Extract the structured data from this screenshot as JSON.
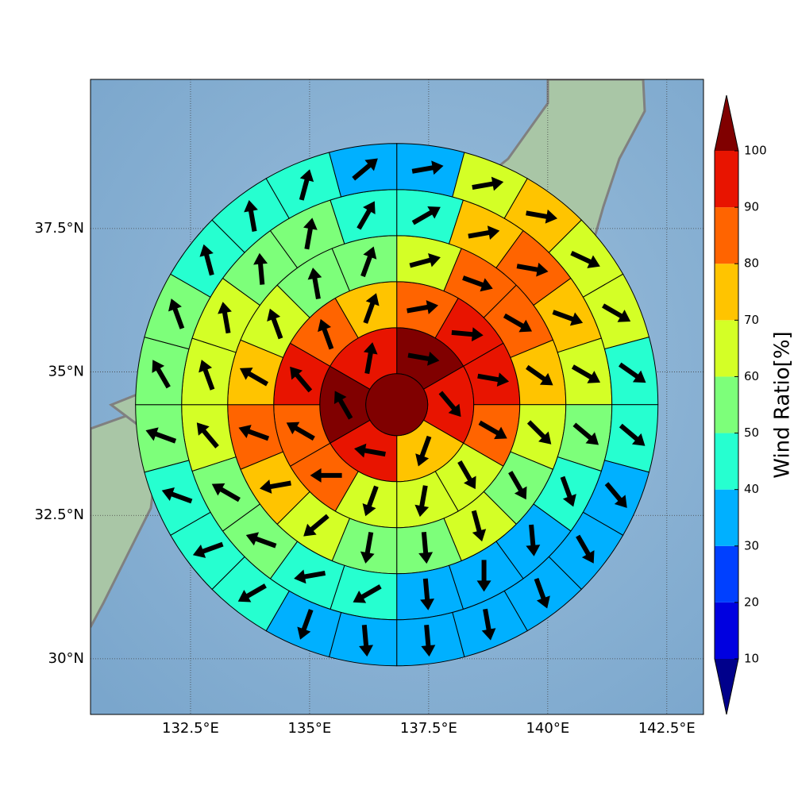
{
  "chart_data": {
    "type": "polar-map",
    "xlim": [
      130.4,
      143.27
    ],
    "ylim": [
      29.03,
      40.1
    ],
    "xticks": [
      {
        "value": 132.5,
        "label": "132.5°E"
      },
      {
        "value": 135,
        "label": "135°E"
      },
      {
        "value": 137.5,
        "label": "137.5°E"
      },
      {
        "value": 140,
        "label": "140°E"
      },
      {
        "value": 142.5,
        "label": "142.5°E"
      }
    ],
    "yticks": [
      {
        "value": 30,
        "label": "30°N"
      },
      {
        "value": 32.5,
        "label": "32.5°N"
      },
      {
        "value": 35,
        "label": "35°N"
      },
      {
        "value": 37.5,
        "label": "37.5°N"
      }
    ],
    "grid": true,
    "center": [
      136.83,
      34.43
    ],
    "center_value": 105,
    "rings": [
      {
        "values": [
          105,
          95,
          75,
          95,
          105,
          95
        ],
        "directions": [
          100,
          140,
          200,
          280,
          330,
          10
        ]
      },
      {
        "values": [
          85,
          95,
          95,
          85,
          65,
          65,
          65,
          85,
          85,
          95,
          85,
          75
        ],
        "directions": [
          80,
          95,
          100,
          120,
          150,
          190,
          200,
          270,
          300,
          320,
          340,
          20
        ]
      },
      {
        "values": [
          65,
          85,
          85,
          75,
          65,
          55,
          65,
          55,
          55,
          65,
          75,
          85,
          75,
          65,
          55,
          55
        ],
        "directions": [
          75,
          110,
          120,
          125,
          135,
          150,
          165,
          175,
          190,
          230,
          260,
          290,
          300,
          340,
          350,
          20
        ]
      },
      {
        "values": [
          45,
          75,
          85,
          75,
          65,
          55,
          45,
          35,
          35,
          35,
          45,
          45,
          55,
          55,
          65,
          65,
          65,
          55,
          55,
          45
        ],
        "directions": [
          60,
          80,
          100,
          110,
          120,
          130,
          160,
          175,
          180,
          175,
          240,
          260,
          290,
          300,
          320,
          340,
          350,
          355,
          10,
          30
        ]
      },
      {
        "values": [
          35,
          65,
          75,
          65,
          65,
          45,
          45,
          35,
          35,
          35,
          35,
          35,
          35,
          35,
          45,
          45,
          45,
          55,
          55,
          55,
          45,
          45,
          45,
          35
        ],
        "directions": [
          80,
          80,
          100,
          115,
          120,
          125,
          130,
          140,
          150,
          160,
          170,
          175,
          175,
          200,
          240,
          250,
          290,
          290,
          330,
          340,
          345,
          350,
          15,
          50
        ]
      }
    ],
    "colorbar": {
      "label": "Wind Ratio[%]",
      "levels": [
        10,
        20,
        30,
        40,
        50,
        60,
        70,
        80,
        90,
        100
      ],
      "colors": [
        "#0000e0",
        "#0040ff",
        "#00b0ff",
        "#26ffd0",
        "#7dff7a",
        "#d4ff26",
        "#ffc400",
        "#ff6400",
        "#e81400"
      ],
      "under_color": "#00008b",
      "over_color": "#800000"
    }
  }
}
